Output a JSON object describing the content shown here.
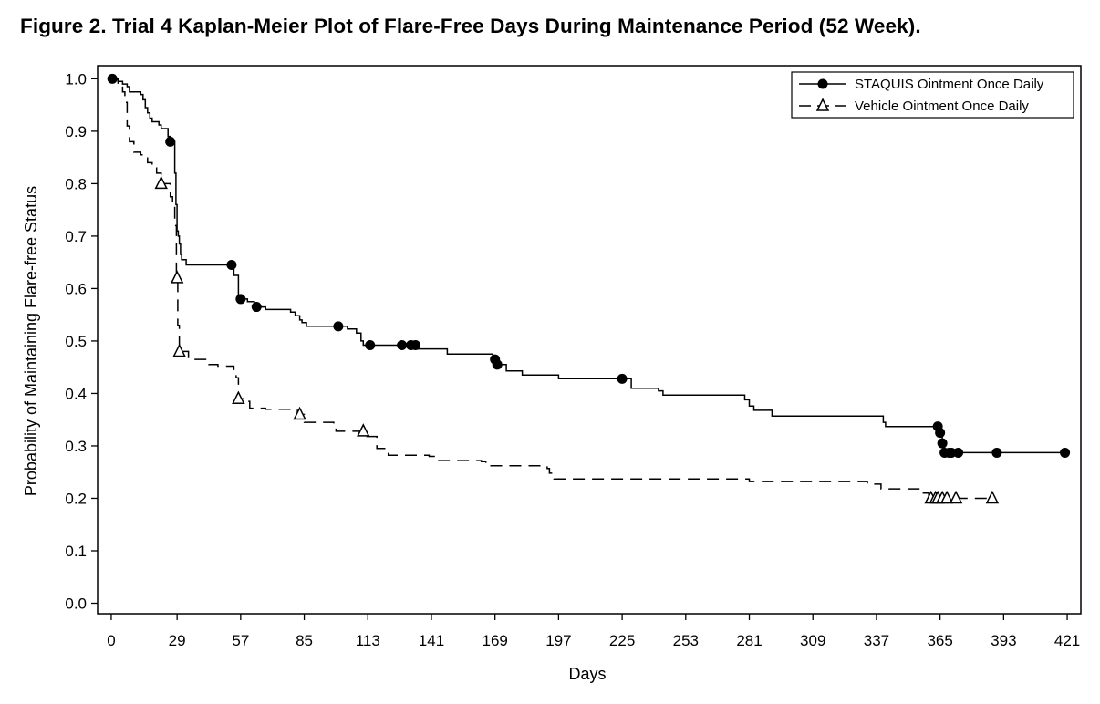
{
  "title": "Figure 2. Trial 4 Kaplan-Meier Plot of Flare-Free Days During Maintenance Period (52 Week).",
  "chart_data": {
    "type": "line",
    "subtype": "kaplan-meier-step",
    "title": "Figure 2. Trial 4 Kaplan-Meier Plot of Flare-Free Days During Maintenance Period (52 Week).",
    "xlabel": "Days",
    "ylabel": "Probability of Maintaining Flare-free Status",
    "xlim": [
      -6,
      427
    ],
    "ylim": [
      -0.02,
      1.025
    ],
    "x_ticks": [
      0,
      29,
      57,
      85,
      113,
      141,
      169,
      197,
      225,
      253,
      281,
      309,
      337,
      365,
      393,
      421
    ],
    "y_ticks": [
      0.0,
      0.1,
      0.2,
      0.3,
      0.4,
      0.5,
      0.6,
      0.7,
      0.8,
      0.9,
      1.0
    ],
    "y_tick_labels": [
      "0.0",
      "0.1",
      "0.2",
      "0.3",
      "0.4",
      "0.5",
      "0.6",
      "0.7",
      "0.8",
      "0.9",
      "1.0"
    ],
    "legend_position": "top-right",
    "series": [
      {
        "name": "STAQUIS Ointment Once Daily",
        "line_style": "solid",
        "marker": "filled-circle",
        "step_points": [
          [
            0,
            1.0
          ],
          [
            3,
            0.995
          ],
          [
            5,
            0.99
          ],
          [
            7,
            0.985
          ],
          [
            8,
            0.975
          ],
          [
            13,
            0.97
          ],
          [
            14,
            0.96
          ],
          [
            15,
            0.945
          ],
          [
            16,
            0.935
          ],
          [
            17,
            0.925
          ],
          [
            18,
            0.918
          ],
          [
            21,
            0.912
          ],
          [
            22,
            0.905
          ],
          [
            25,
            0.89
          ],
          [
            26,
            0.88
          ],
          [
            28,
            0.82
          ],
          [
            28.5,
            0.76
          ],
          [
            29,
            0.71
          ],
          [
            29.5,
            0.7
          ],
          [
            30,
            0.685
          ],
          [
            30.5,
            0.665
          ],
          [
            31,
            0.655
          ],
          [
            33,
            0.645
          ],
          [
            54,
            0.625
          ],
          [
            56,
            0.58
          ],
          [
            60,
            0.575
          ],
          [
            63,
            0.565
          ],
          [
            68,
            0.56
          ],
          [
            79,
            0.555
          ],
          [
            81,
            0.548
          ],
          [
            83,
            0.54
          ],
          [
            84,
            0.535
          ],
          [
            86,
            0.528
          ],
          [
            104,
            0.523
          ],
          [
            108,
            0.515
          ],
          [
            110,
            0.5
          ],
          [
            111,
            0.492
          ],
          [
            135,
            0.485
          ],
          [
            148,
            0.475
          ],
          [
            168,
            0.465
          ],
          [
            170,
            0.455
          ],
          [
            174,
            0.443
          ],
          [
            181,
            0.435
          ],
          [
            197,
            0.428
          ],
          [
            229,
            0.41
          ],
          [
            241,
            0.405
          ],
          [
            243,
            0.397
          ],
          [
            279,
            0.388
          ],
          [
            281,
            0.376
          ],
          [
            283,
            0.368
          ],
          [
            291,
            0.357
          ],
          [
            340,
            0.345
          ],
          [
            341,
            0.337
          ],
          [
            365,
            0.325
          ],
          [
            366,
            0.305
          ],
          [
            367,
            0.287
          ]
        ],
        "end_x": 421,
        "censor_x": [
          0.5,
          26,
          53,
          57,
          64,
          100,
          114,
          128,
          132,
          134,
          169,
          170,
          225,
          364,
          365,
          366,
          367,
          369,
          370,
          373,
          390,
          420
        ]
      },
      {
        "name": "Vehicle Ointment Once Daily",
        "line_style": "dashed",
        "marker": "open-triangle",
        "step_points": [
          [
            0,
            1.0
          ],
          [
            3,
            0.99
          ],
          [
            5,
            0.975
          ],
          [
            6,
            0.955
          ],
          [
            7,
            0.91
          ],
          [
            8,
            0.88
          ],
          [
            10,
            0.86
          ],
          [
            13,
            0.855
          ],
          [
            16,
            0.84
          ],
          [
            18,
            0.83
          ],
          [
            20,
            0.82
          ],
          [
            22,
            0.8
          ],
          [
            26,
            0.775
          ],
          [
            27,
            0.76
          ],
          [
            28,
            0.72
          ],
          [
            28.7,
            0.62
          ],
          [
            29.3,
            0.53
          ],
          [
            30,
            0.48
          ],
          [
            34,
            0.465
          ],
          [
            43,
            0.455
          ],
          [
            47,
            0.452
          ],
          [
            54,
            0.44
          ],
          [
            55,
            0.43
          ],
          [
            56,
            0.39
          ],
          [
            58,
            0.385
          ],
          [
            61,
            0.372
          ],
          [
            68,
            0.37
          ],
          [
            82,
            0.36
          ],
          [
            85,
            0.345
          ],
          [
            98,
            0.335
          ],
          [
            99,
            0.328
          ],
          [
            112,
            0.318
          ],
          [
            117,
            0.295
          ],
          [
            122,
            0.282
          ],
          [
            140,
            0.28
          ],
          [
            143,
            0.272
          ],
          [
            163,
            0.27
          ],
          [
            165,
            0.262
          ],
          [
            192,
            0.257
          ],
          [
            193,
            0.248
          ],
          [
            195,
            0.237
          ],
          [
            241,
            0.237
          ],
          [
            281,
            0.232
          ],
          [
            333,
            0.227
          ],
          [
            339,
            0.218
          ],
          [
            357,
            0.21
          ],
          [
            360,
            0.2
          ]
        ],
        "end_x": 388,
        "censor_x": [
          22,
          29,
          30,
          56,
          83,
          111,
          361,
          363,
          364,
          366,
          368,
          372,
          388
        ]
      }
    ]
  }
}
